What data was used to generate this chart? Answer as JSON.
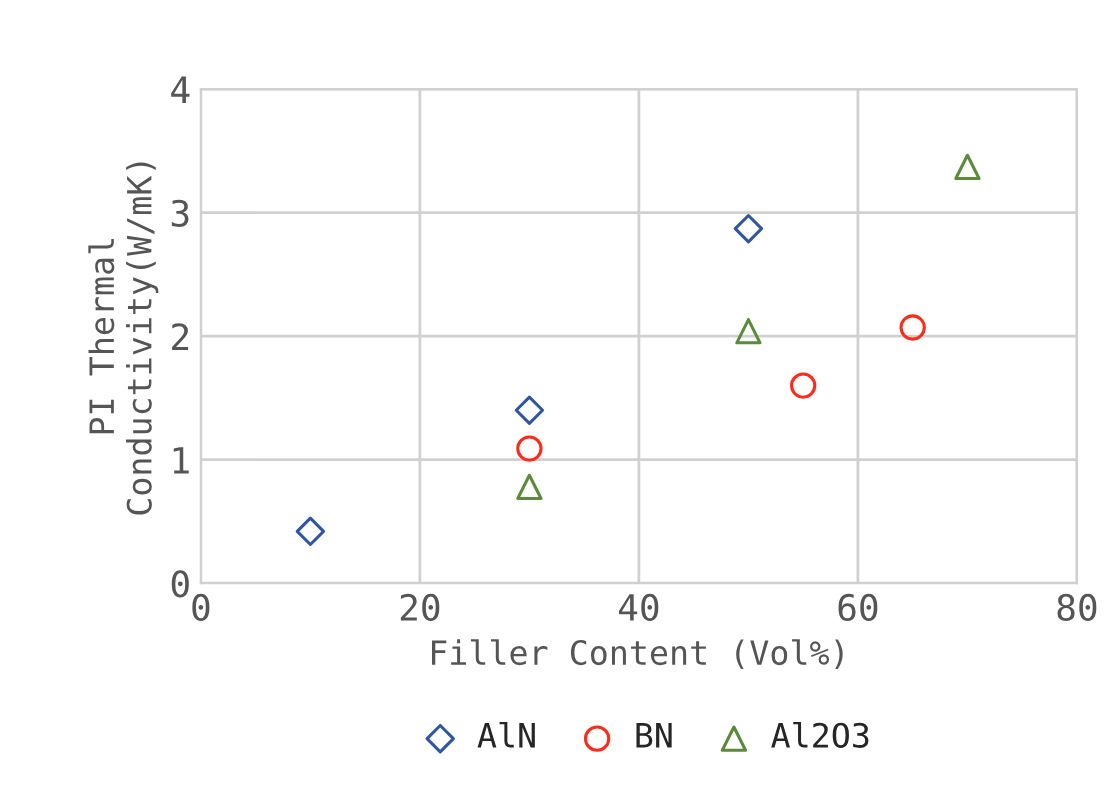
{
  "chart_data": {
    "type": "scatter",
    "xlabel": "Filler Content (Vol%)",
    "ylabel": "PI Thermal\nConductivity(W/mK)",
    "series": [
      {
        "name": "AlN",
        "color": "#2f55a4",
        "marker": "diamond",
        "x": [
          10,
          30,
          50
        ],
        "values": [
          0.42,
          1.4,
          2.87
        ]
      },
      {
        "name": "BN",
        "color": "#ff2a1a",
        "marker": "circle",
        "x": [
          30,
          55,
          65
        ],
        "values": [
          1.09,
          1.6,
          2.07
        ]
      },
      {
        "name": "Al2O3",
        "color": "#5a8a3a",
        "marker": "triangle",
        "x": [
          30,
          50,
          70
        ],
        "values": [
          0.78,
          2.04,
          3.37
        ]
      }
    ],
    "xlim": [
      0,
      80
    ],
    "xticks": [
      0,
      20,
      40,
      60,
      80
    ],
    "ylim": [
      0,
      4
    ],
    "yticks": [
      0,
      1,
      2,
      3,
      4
    ],
    "grid": true,
    "legend": "bottom"
  }
}
